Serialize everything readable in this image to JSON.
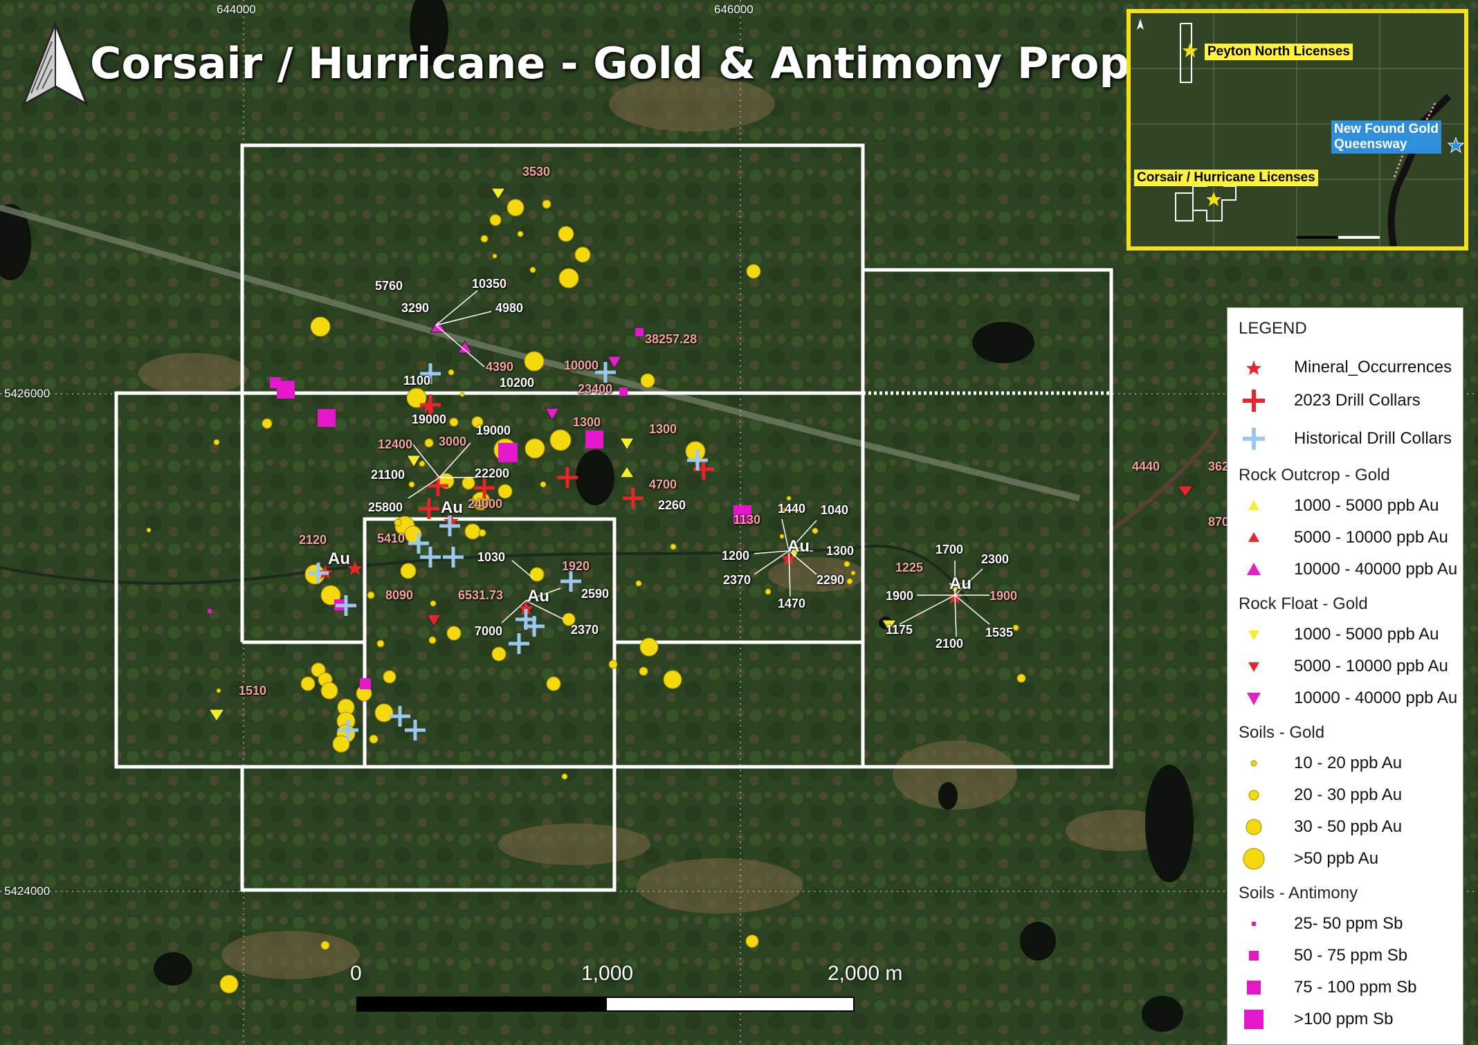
{
  "title": "Corsair / Hurricane - Gold & Antimony Property",
  "north_arrow": "north-arrow-icon",
  "coordinates": {
    "easting": [
      "644000",
      "646000"
    ],
    "northing": [
      "5426000",
      "5424000"
    ]
  },
  "scale_bar": {
    "labels": [
      "0",
      "1,000",
      "2,000 m"
    ]
  },
  "map_labels": {
    "white": [
      "5760",
      "10350",
      "3290",
      "4980",
      "1100",
      "10200",
      "19000",
      "19000",
      "21100",
      "22200",
      "25800",
      "2260",
      "1440",
      "1040",
      "1200",
      "1300",
      "2370",
      "2290",
      "1470",
      "1030",
      "2590",
      "7000",
      "2370",
      "1700",
      "2300",
      "1900",
      "1175",
      "2100",
      "1535"
    ],
    "pink": [
      "3530",
      "38257.28",
      "4390",
      "10000",
      "23400",
      "1300",
      "1300",
      "4700",
      "12400",
      "3000",
      "24000",
      "2120",
      "5410",
      "8090",
      "6531.73",
      "1920",
      "1130",
      "1510",
      "1225",
      "1900",
      "4440",
      "362",
      "870"
    ],
    "au": [
      "Au",
      "Au",
      "Au",
      "Au",
      "Au"
    ]
  },
  "inset": {
    "labels": [
      "Peyton North Licenses",
      "New Found Gold",
      "Queensway",
      "Corsair / Hurricane Licenses"
    ]
  },
  "legend": {
    "title": "LEGEND",
    "sections": [
      {
        "heading": "",
        "items": [
          {
            "label": "Mineral_Occurrences",
            "symbol": "star-icon",
            "color": "#e8262a"
          },
          {
            "label": "2023 Drill Collars",
            "symbol": "cross-icon",
            "color": "#e8262a"
          },
          {
            "label": "Historical Drill Collars",
            "symbol": "cross-icon",
            "color": "#9cc7ee"
          }
        ]
      },
      {
        "heading": "Rock Outcrop - Gold",
        "items": [
          {
            "label": "1000 - 5000 ppb Au",
            "symbol": "triangle-up-icon",
            "color": "#f4ee2a"
          },
          {
            "label": "5000 - 10000 ppb Au",
            "symbol": "triangle-up-icon",
            "color": "#e8262a"
          },
          {
            "label": "10000 - 40000 ppb Au",
            "symbol": "triangle-up-icon",
            "color": "#e61fc8"
          }
        ]
      },
      {
        "heading": "Rock Float - Gold",
        "items": [
          {
            "label": "1000 - 5000 ppb Au",
            "symbol": "triangle-down-icon",
            "color": "#f4ee2a"
          },
          {
            "label": "5000 - 10000 ppb Au",
            "symbol": "triangle-down-icon",
            "color": "#e8262a"
          },
          {
            "label": "10000 - 40000 ppb Au",
            "symbol": "triangle-down-icon",
            "color": "#e61fc8"
          }
        ]
      },
      {
        "heading": "Soils - Gold",
        "items": [
          {
            "label": "10 - 20 ppb Au",
            "symbol": "circle-icon",
            "color": "#f5d90f",
            "size": 1
          },
          {
            "label": "20 - 30 ppb Au",
            "symbol": "circle-icon",
            "color": "#f5d90f",
            "size": 2
          },
          {
            "label": "30 - 50 ppb Au",
            "symbol": "circle-icon",
            "color": "#f5d90f",
            "size": 3
          },
          {
            "label": ">50 ppb Au",
            "symbol": "circle-icon",
            "color": "#f5d90f",
            "size": 4
          }
        ]
      },
      {
        "heading": "Soils - Antimony",
        "items": [
          {
            "label": "25- 50 ppm Sb",
            "symbol": "square-icon",
            "color": "#e316c9",
            "size": 1
          },
          {
            "label": "50 - 75 ppm Sb",
            "symbol": "square-icon",
            "color": "#e316c9",
            "size": 2
          },
          {
            "label": "75 - 100 ppm Sb",
            "symbol": "square-icon",
            "color": "#e316c9",
            "size": 3
          },
          {
            "label": ">100 ppm Sb",
            "symbol": "square-icon",
            "color": "#e316c9",
            "size": 4
          }
        ]
      }
    ]
  }
}
